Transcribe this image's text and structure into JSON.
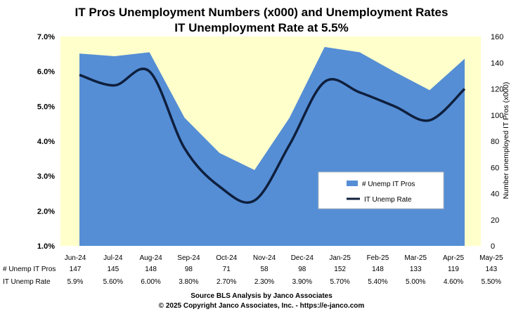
{
  "chart_data": {
    "type": "area",
    "title": "IT Pros Unemployment Numbers (x000) and Unemployment Rates",
    "subtitle": "IT Unemployment Rate at 5.5%",
    "categories": [
      "Jun-24",
      "Jul-24",
      "Aug-24",
      "Sep-24",
      "Oct-24",
      "Nov-24",
      "Dec-24",
      "Jan-25",
      "Feb-25",
      "Mar-25",
      "Apr-25",
      "May-25"
    ],
    "series": [
      {
        "name": "# Unemp IT Pros",
        "axis": "right",
        "render": "area",
        "color": "#558ed5",
        "values": [
          147,
          145,
          148,
          98,
          71,
          58,
          98,
          152,
          148,
          133,
          119,
          143
        ]
      },
      {
        "name": "IT Unemp Rate",
        "axis": "left",
        "render": "line",
        "color": "#0f1f3d",
        "values": [
          5.9,
          5.6,
          6.0,
          3.8,
          2.7,
          2.3,
          3.9,
          5.7,
          5.4,
          5.0,
          4.6,
          5.5
        ]
      }
    ],
    "table": {
      "rows": [
        {
          "label": "# Unemp IT Pros",
          "cells": [
            "147",
            "145",
            "148",
            "98",
            "71",
            "58",
            "98",
            "152",
            "148",
            "133",
            "119",
            "143"
          ]
        },
        {
          "label": "IT Unemp Rate",
          "cells": [
            "5.9%",
            "5.60%",
            "6.00%",
            "3.80%",
            "2.70%",
            "2.30%",
            "3.90%",
            "5.70%",
            "5.40%",
            "5.00%",
            "4.60%",
            "5.50%"
          ]
        }
      ]
    },
    "y_left": {
      "min": 1,
      "max": 7,
      "ticks": [
        "1.0%",
        "2.0%",
        "3.0%",
        "4.0%",
        "5.0%",
        "6.0%",
        "7.0%"
      ]
    },
    "y_right": {
      "min": 0,
      "max": 160,
      "label": "Number unemployed IT Pros (x000)",
      "ticks": [
        "0",
        "20",
        "40",
        "60",
        "80",
        "100",
        "120",
        "140",
        "160"
      ]
    },
    "legend_position": "right-center",
    "plot_background": "#ffffcc",
    "grid": false
  },
  "source": {
    "line1": "Source BLS Analysis by Janco Associates",
    "line2": "© 2025 Copyright Janco Associates, Inc. - https://e-janco.com"
  }
}
